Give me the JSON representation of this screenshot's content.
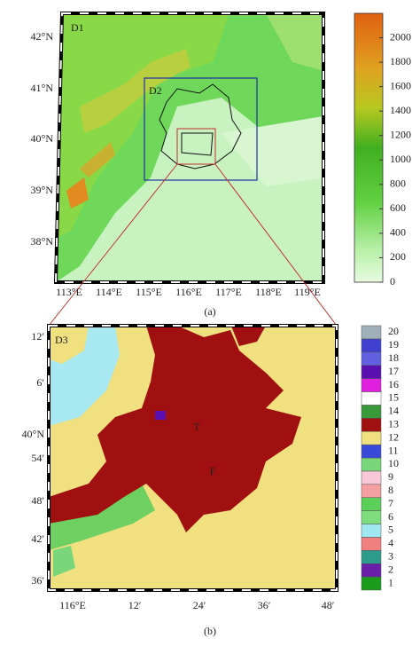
{
  "panel_a": {
    "label": "(a)",
    "domain_labels": [
      "D1",
      "D2"
    ],
    "lat_labels": [
      "42°N",
      "41°N",
      "40°N",
      "39°N",
      "38°N"
    ],
    "lon_labels": [
      "113°E",
      "114°E",
      "115°E",
      "116°E",
      "117°E",
      "118°E",
      "119°E"
    ],
    "colorbar": {
      "range": [
        0,
        2200
      ],
      "ticks": [
        0,
        200,
        400,
        600,
        800,
        1000,
        1200,
        1400,
        1600,
        1800,
        2000
      ]
    }
  },
  "panel_b": {
    "label": "(b)",
    "domain_label": "D3",
    "markers": [
      "T",
      "F"
    ],
    "lat_labels": [
      "12′",
      "6′",
      "40°N",
      "54′",
      "48′",
      "42′",
      "36′"
    ],
    "lon_labels": [
      "116°E",
      "12′",
      "24′",
      "36′",
      "48′"
    ],
    "classes": {
      "labels": [
        1,
        2,
        3,
        4,
        5,
        6,
        7,
        8,
        9,
        10,
        11,
        12,
        13,
        14,
        15,
        16,
        17,
        18,
        19,
        20
      ],
      "colors": [
        "#1a9c1a",
        "#6a1fa8",
        "#2e9c8c",
        "#f08080",
        "#a0e8f0",
        "#7ede7e",
        "#5ad05a",
        "#f4a0a0",
        "#f8c8d8",
        "#7ad67a",
        "#3a4ad8",
        "#f0e080",
        "#a01010",
        "#3a9a3a",
        "#ffffff",
        "#e020e0",
        "#5a10b0",
        "#6060e0",
        "#4040d0",
        "#a0b0b8"
      ]
    }
  }
}
